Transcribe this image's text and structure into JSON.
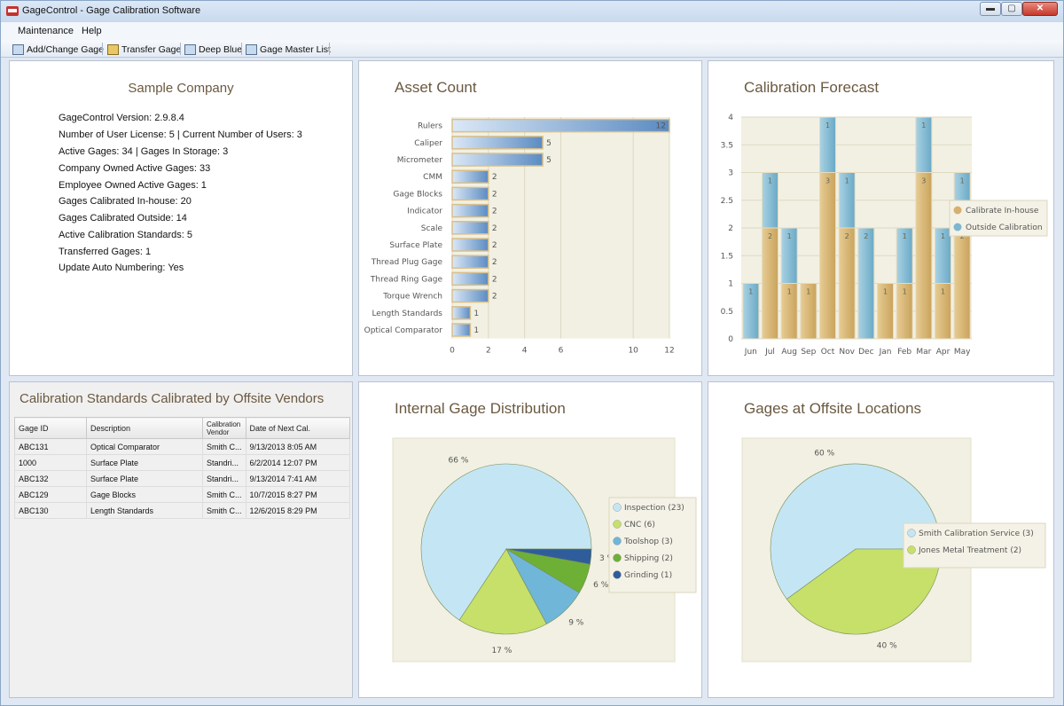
{
  "window": {
    "title": "GageControl - Gage Calibration Software",
    "buttons": {
      "minimize": "▬",
      "maximize": "▢",
      "close": "✕"
    }
  },
  "menu": [
    {
      "label": "Maintenance"
    },
    {
      "label": "Help"
    }
  ],
  "toolbar": [
    {
      "label": "Add/Change Gage",
      "icon": "add-gage-icon"
    },
    {
      "label": "Transfer Gage",
      "icon": "transfer-icon"
    },
    {
      "label": "Deep Blue",
      "icon": "calendar-icon"
    },
    {
      "label": "Gage Master List",
      "icon": "list-icon"
    }
  ],
  "company": {
    "title": "Sample Company",
    "lines": [
      "GageControl Version: 2.9.8.4",
      "Number of User License: 5  |  Current Number of Users: 3",
      "Active Gages: 34  |  Gages In Storage: 3",
      "Company Owned Active Gages: 33",
      "Employee Owned Active Gages: 1",
      "Gages Calibrated In-house: 20",
      "Gages Calibrated Outside: 14",
      "Active Calibration Standards: 5",
      "Transferred Gages: 1",
      "Update Auto Numbering: Yes"
    ]
  },
  "standards": {
    "title": "Calibration Standards Calibrated  by Offsite Vendors",
    "columns": [
      "Gage ID",
      "Description",
      "Calibration Vendor",
      "Date of Next Cal."
    ],
    "rows": [
      [
        "ABC131",
        "Optical Comparator",
        "Smith C...",
        "9/13/2013 8:05 AM"
      ],
      [
        "1000",
        "Surface Plate",
        "Standri...",
        "6/2/2014 12:07 PM"
      ],
      [
        "ABC132",
        "Surface Plate",
        "Standri...",
        "9/13/2014 7:41 AM"
      ],
      [
        "ABC129",
        "Gage Blocks",
        "Smith C...",
        "10/7/2015 8:27 PM"
      ],
      [
        "ABC130",
        "Length Standards",
        "Smith C...",
        "12/6/2015 8:29 PM"
      ]
    ]
  },
  "colors": {
    "bar_blue": "#6f9ccb",
    "inhouse": "#d6b06e",
    "outside": "#7fb6cf",
    "plot_bg": "#f1f0e2",
    "title_brown": "#6b5940"
  },
  "chart_data": [
    {
      "type": "bar",
      "orientation": "horizontal",
      "title": "Asset Count",
      "categories": [
        "Rulers",
        "Caliper",
        "Micrometer",
        "CMM",
        "Gage Blocks",
        "Indicator",
        "Scale",
        "Surface Plate",
        "Thread Plug Gage",
        "Thread Ring Gage",
        "Torque Wrench",
        "Length Standards",
        "Optical Comparator"
      ],
      "values": [
        12,
        5,
        5,
        2,
        2,
        2,
        2,
        2,
        2,
        2,
        2,
        1,
        1
      ],
      "xlim": [
        0,
        12
      ],
      "xticks": [
        "0",
        "2",
        "4",
        "6",
        "10",
        "12"
      ],
      "grid": true
    },
    {
      "type": "bar",
      "stacked": true,
      "title": "Calibration Forecast",
      "categories": [
        "Jun",
        "Jul",
        "Aug",
        "Sep",
        "Oct",
        "Nov",
        "Dec",
        "Jan",
        "Feb",
        "Mar",
        "Apr",
        "May"
      ],
      "series": [
        {
          "name": "Calibrate In-house",
          "values": [
            0,
            2,
            1,
            1,
            3,
            2,
            0,
            1,
            1,
            3,
            1,
            2
          ]
        },
        {
          "name": "Outside Calibration",
          "values": [
            1,
            1,
            1,
            0,
            1,
            1,
            2,
            0,
            1,
            1,
            1,
            1
          ]
        }
      ],
      "ylim": [
        0,
        4
      ],
      "yticks": [
        "0",
        "0.5",
        "1",
        "1.5",
        "2",
        "2.5",
        "3",
        "3.5",
        "4"
      ],
      "legend": "right",
      "grid": true
    },
    {
      "type": "pie",
      "title": "Internal Gage Distribution",
      "slices": [
        {
          "name": "Inspection",
          "value": 23,
          "label": "66 %",
          "color": "#c4e6f4"
        },
        {
          "name": "CNC",
          "value": 6,
          "label": "17 %",
          "color": "#c6e06a"
        },
        {
          "name": "Toolshop",
          "value": 3,
          "label": "9 %",
          "color": "#6fb6d8"
        },
        {
          "name": "Shipping",
          "value": 2,
          "label": "6 %",
          "color": "#6eb036"
        },
        {
          "name": "Grinding",
          "value": 1,
          "label": "3 %",
          "color": "#2f5d9b"
        }
      ],
      "legend_labels": [
        "Inspection  (23)",
        "CNC  (6)",
        "Toolshop  (3)",
        "Shipping  (2)",
        "Grinding  (1)"
      ],
      "legend": "right"
    },
    {
      "type": "pie",
      "title": "Gages at Offsite Locations",
      "slices": [
        {
          "name": "Smith Calibration Service",
          "value": 3,
          "label": "60 %",
          "color": "#c4e6f4"
        },
        {
          "name": "Jones Metal Treatment",
          "value": 2,
          "label": "40 %",
          "color": "#c6e06a"
        }
      ],
      "legend_labels": [
        "Smith Calibration Service  (3)",
        "Jones Metal Treatment  (2)"
      ],
      "legend": "right"
    }
  ]
}
